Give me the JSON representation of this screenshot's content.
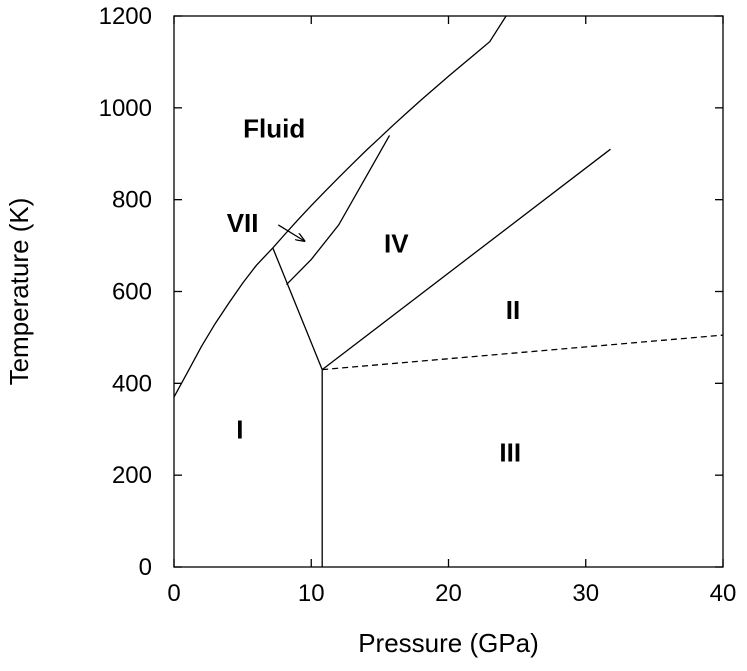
{
  "chart_data": {
    "type": "line",
    "xlabel": "Pressure (GPa)",
    "ylabel": "Temperature (K)",
    "xlim": [
      0,
      40
    ],
    "ylim": [
      0,
      1200
    ],
    "xticks": [
      0,
      10,
      20,
      30,
      40
    ],
    "yticks": [
      0,
      200,
      400,
      600,
      800,
      1000,
      1200
    ],
    "grid": false,
    "series": [
      {
        "style": "solid",
        "x": [
          0,
          1,
          2,
          3,
          4,
          5,
          6,
          7.2
        ],
        "y": [
          370,
          425,
          480,
          530,
          575,
          618,
          657,
          695
        ]
      },
      {
        "style": "solid",
        "x": [
          7.2,
          8,
          9,
          10,
          11,
          12,
          13,
          14,
          15,
          16,
          17,
          18,
          19,
          20,
          21,
          22,
          23,
          24.2
        ],
        "y": [
          695,
          722,
          755,
          787,
          818,
          848,
          878,
          907,
          935,
          963,
          990,
          1017,
          1043,
          1069,
          1094,
          1119,
          1144,
          1200
        ]
      },
      {
        "style": "solid",
        "x": [
          7.2,
          10.8
        ],
        "y": [
          695,
          430
        ]
      },
      {
        "style": "solid",
        "x": [
          10.8,
          10.8
        ],
        "y": [
          0,
          430
        ]
      },
      {
        "style": "solid",
        "x": [
          10.8,
          31.8
        ],
        "y": [
          430,
          910
        ]
      },
      {
        "style": "dashed",
        "x": [
          10.8,
          40
        ],
        "y": [
          430,
          505
        ]
      },
      {
        "style": "solid",
        "x": [
          8.2,
          10,
          12,
          14,
          15.7
        ],
        "y": [
          615,
          670,
          745,
          850,
          940
        ]
      }
    ],
    "annotations": [
      {
        "text": "Fluid",
        "x": 7.3,
        "y": 950
      },
      {
        "text": "VII",
        "x": 5.0,
        "y": 745
      },
      {
        "text": "IV",
        "x": 16.2,
        "y": 700
      },
      {
        "text": "II",
        "x": 24.7,
        "y": 555
      },
      {
        "text": "I",
        "x": 4.8,
        "y": 295
      },
      {
        "text": "III",
        "x": 24.5,
        "y": 245
      }
    ],
    "arrow": {
      "from": [
        7.6,
        745
      ],
      "to": [
        9.5,
        710
      ]
    }
  }
}
